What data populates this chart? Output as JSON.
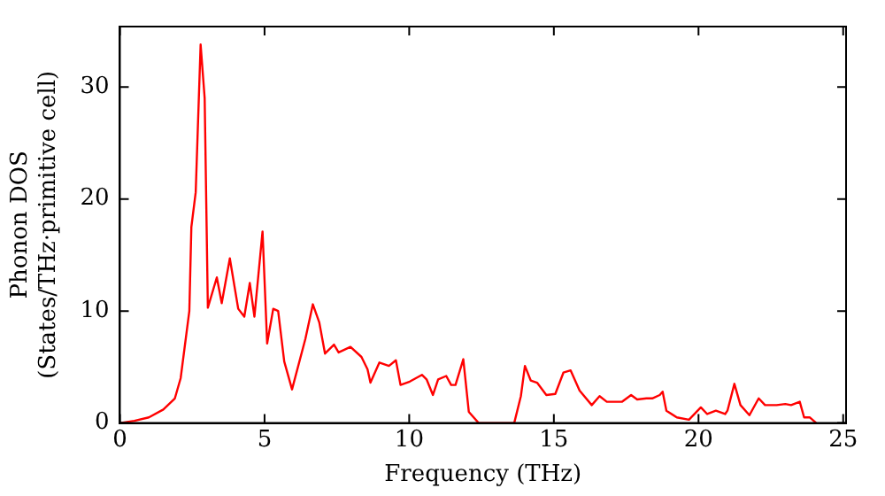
{
  "chart_data": {
    "type": "line",
    "xlabel": "Frequency (THz)",
    "ylabel": "Phonon DOS\n(States/THz·primitive cell)",
    "x": [
      0,
      0.5,
      1.0,
      1.5,
      1.9,
      2.1,
      2.4,
      2.47,
      2.62,
      2.79,
      2.93,
      3.04,
      3.35,
      3.52,
      3.8,
      4.09,
      4.3,
      4.49,
      4.65,
      4.93,
      5.09,
      5.3,
      5.47,
      5.68,
      5.95,
      6.41,
      6.67,
      6.89,
      7.09,
      7.4,
      7.56,
      7.97,
      8.35,
      8.56,
      8.66,
      8.97,
      9.3,
      9.54,
      9.7,
      10.02,
      10.44,
      10.6,
      10.82,
      11.0,
      11.28,
      11.45,
      11.6,
      11.87,
      12.06,
      12.4,
      13.63,
      13.86,
      14.0,
      14.2,
      14.42,
      14.74,
      15.05,
      15.33,
      15.58,
      15.89,
      16.31,
      16.58,
      16.83,
      17.36,
      17.67,
      17.88,
      18.2,
      18.4,
      18.66,
      18.76,
      18.89,
      19.25,
      19.67,
      20.08,
      20.3,
      20.6,
      20.92,
      21.0,
      21.24,
      21.45,
      21.76,
      22.08,
      22.3,
      22.7,
      23.0,
      23.2,
      23.5,
      23.65,
      23.85,
      24.07
    ],
    "series": [
      {
        "color": "#ff0000",
        "values": [
          0,
          0.2,
          0.5,
          1.2,
          2.2,
          4,
          10,
          17.5,
          20.6,
          33.8,
          29,
          10.3,
          13,
          10.7,
          14.7,
          10.2,
          9.5,
          12.5,
          9.5,
          17.1,
          7.1,
          10.2,
          10,
          5.5,
          3,
          7.5,
          10.6,
          9,
          6.2,
          7,
          6.3,
          6.8,
          5.9,
          4.8,
          3.6,
          5.4,
          5.1,
          5.6,
          3.4,
          3.7,
          4.3,
          3.9,
          2.5,
          3.9,
          4.2,
          3.4,
          3.4,
          5.7,
          1,
          0,
          0,
          2.4,
          5.1,
          3.8,
          3.6,
          2.5,
          2.6,
          4.5,
          4.7,
          2.9,
          1.6,
          2.4,
          1.9,
          1.9,
          2.5,
          2.1,
          2.2,
          2.2,
          2.5,
          2.8,
          1.1,
          0.5,
          0.3,
          1.4,
          0.8,
          1.1,
          0.8,
          1.1,
          3.5,
          1.6,
          0.7,
          2.2,
          1.6,
          1.6,
          1.7,
          1.6,
          1.9,
          0.5,
          0.5,
          0
        ]
      }
    ],
    "xlim": [
      0,
      25.1
    ],
    "ylim": [
      0,
      35.4
    ],
    "xticks": [
      0,
      5,
      10,
      15,
      20,
      25
    ],
    "yticks": [
      0,
      10,
      20,
      30
    ],
    "grid": false,
    "legend": false,
    "marker": "none",
    "line_style": "solid"
  }
}
